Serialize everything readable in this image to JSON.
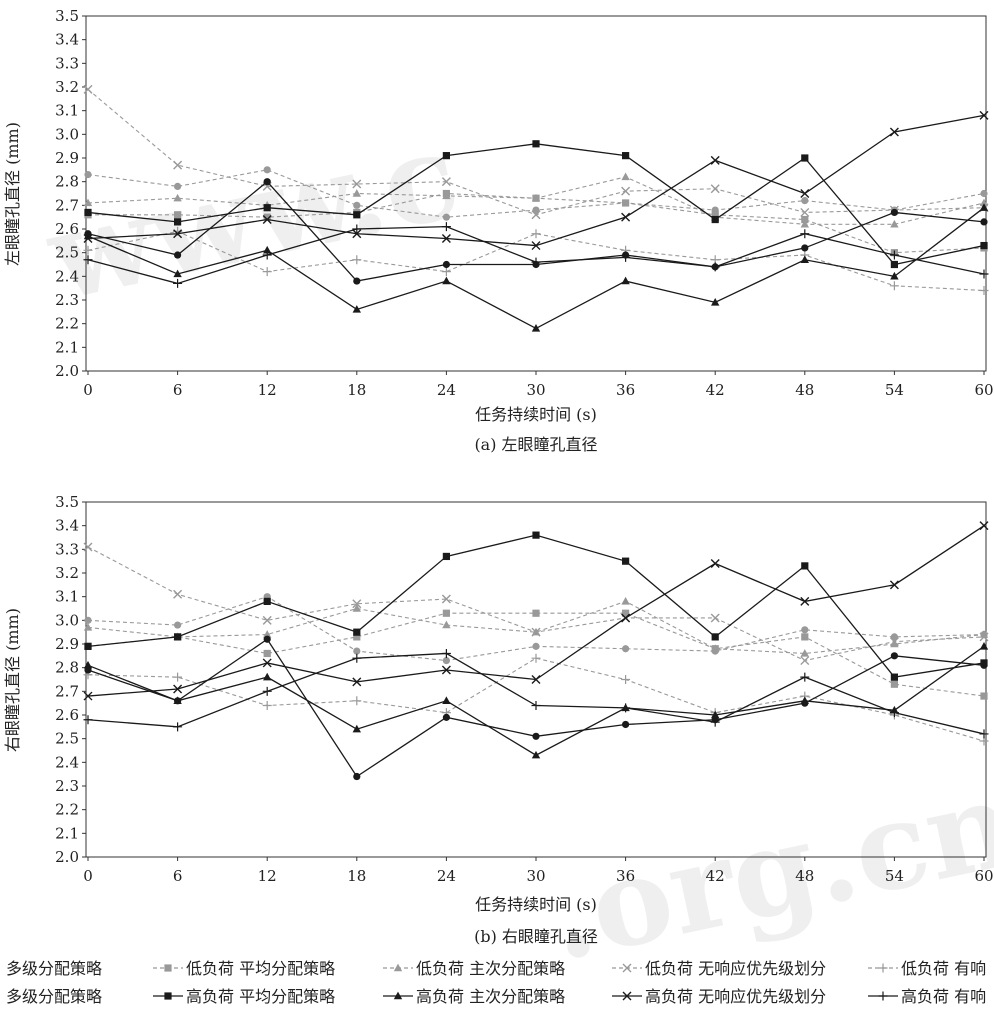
{
  "figure": {
    "subplots": [
      {
        "caption": "(a) 左眼瞳孔直径",
        "xlabel": "任务持续时间 (s)",
        "ylabel": "左眼瞳孔直径 (mm)"
      },
      {
        "caption": "(b) 右眼瞳孔直径",
        "xlabel": "任务持续时间 (s)",
        "ylabel": "右眼瞳孔直径 (mm)"
      }
    ],
    "legend_rows": [
      [
        {
          "text": "多级分配策略",
          "style": "none"
        },
        {
          "text": "低负荷 平均分配策略",
          "style": "low-square"
        },
        {
          "text": "低负荷 主次分配策略",
          "style": "low-triangle"
        },
        {
          "text": "低负荷 无响应优先级划分",
          "style": "low-cross"
        },
        {
          "text": "低负荷 有响",
          "style": "low-plus"
        }
      ],
      [
        {
          "text": "多级分配策略",
          "style": "none"
        },
        {
          "text": "高负荷 平均分配策略",
          "style": "high-square"
        },
        {
          "text": "高负荷 主次分配策略",
          "style": "high-triangle"
        },
        {
          "text": "高负荷 无响应优先级划分",
          "style": "high-cross"
        },
        {
          "text": "高负荷 有响",
          "style": "high-plus"
        }
      ]
    ],
    "watermark": [
      "www.c",
      ".org.cn"
    ]
  },
  "chart_data": [
    {
      "type": "line",
      "caption": "(a) 左眼瞳孔直径",
      "xlabel": "任务持续时间 (s)",
      "ylabel": "左眼瞳孔直径 (mm)",
      "x": [
        0,
        6,
        12,
        18,
        24,
        30,
        36,
        42,
        48,
        54,
        60
      ],
      "ylim": [
        2.0,
        3.5
      ],
      "yticks": [
        2.0,
        2.1,
        2.2,
        2.3,
        2.4,
        2.5,
        2.6,
        2.7,
        2.8,
        2.9,
        3.0,
        3.1,
        3.2,
        3.3,
        3.4,
        3.5
      ],
      "ytick_labels": [
        "2.0",
        "2.1",
        "2.2",
        "2.3",
        "2.4",
        "2.5",
        "2.6",
        "2.7",
        "2.8",
        "2.9",
        "3.0",
        "3.1",
        "3.2",
        "3.3",
        "3.4",
        "3.5"
      ],
      "xtick_labels": [
        "0",
        "6",
        "12",
        "18",
        "24",
        "30",
        "36",
        "42",
        "48",
        "54",
        "60"
      ],
      "grid": false,
      "series": [
        {
          "name": "低负荷 多级分配策略",
          "marker": "circle",
          "dashed": true,
          "color": "#999999",
          "values": [
            2.83,
            2.78,
            2.85,
            2.7,
            2.65,
            2.68,
            2.71,
            2.68,
            2.72,
            2.68,
            2.75
          ]
        },
        {
          "name": "低负荷 平均分配策略",
          "marker": "square",
          "dashed": true,
          "color": "#999999",
          "values": [
            2.66,
            2.66,
            2.65,
            2.67,
            2.75,
            2.73,
            2.71,
            2.66,
            2.64,
            2.5,
            2.52
          ]
        },
        {
          "name": "低负荷 主次分配策略",
          "marker": "triangle",
          "dashed": true,
          "color": "#999999",
          "values": [
            2.71,
            2.73,
            2.7,
            2.75,
            2.74,
            2.73,
            2.82,
            2.65,
            2.62,
            2.62,
            2.71
          ]
        },
        {
          "name": "低负荷 无响应优先级划分",
          "marker": "cross",
          "dashed": true,
          "color": "#999999",
          "values": [
            3.19,
            2.87,
            2.78,
            2.79,
            2.8,
            2.66,
            2.76,
            2.77,
            2.67,
            2.68,
            2.69
          ]
        },
        {
          "name": "低负荷 有响",
          "marker": "plus",
          "dashed": true,
          "color": "#999999",
          "values": [
            2.51,
            2.59,
            2.42,
            2.47,
            2.42,
            2.58,
            2.51,
            2.47,
            2.49,
            2.36,
            2.34
          ]
        },
        {
          "name": "高负荷 多级分配策略",
          "marker": "circle",
          "dashed": false,
          "color": "#1a1a1a",
          "values": [
            2.58,
            2.49,
            2.8,
            2.38,
            2.45,
            2.45,
            2.49,
            2.44,
            2.52,
            2.67,
            2.63
          ]
        },
        {
          "name": "高负荷 平均分配策略",
          "marker": "square",
          "dashed": false,
          "color": "#1a1a1a",
          "values": [
            2.67,
            2.63,
            2.69,
            2.66,
            2.91,
            2.96,
            2.91,
            2.64,
            2.9,
            2.45,
            2.53
          ]
        },
        {
          "name": "高负荷 主次分配策略",
          "marker": "triangle",
          "dashed": false,
          "color": "#1a1a1a",
          "values": [
            2.57,
            2.41,
            2.51,
            2.26,
            2.38,
            2.18,
            2.38,
            2.29,
            2.47,
            2.4,
            2.69
          ]
        },
        {
          "name": "高负荷 无响应优先级划分",
          "marker": "cross",
          "dashed": false,
          "color": "#1a1a1a",
          "values": [
            2.56,
            2.58,
            2.64,
            2.58,
            2.56,
            2.53,
            2.65,
            2.89,
            2.75,
            3.01,
            3.08
          ]
        },
        {
          "name": "高负荷 有响",
          "marker": "plus",
          "dashed": false,
          "color": "#1a1a1a",
          "values": [
            2.47,
            2.37,
            2.49,
            2.6,
            2.61,
            2.46,
            2.48,
            2.44,
            2.58,
            2.49,
            2.41
          ]
        }
      ]
    },
    {
      "type": "line",
      "caption": "(b) 右眼瞳孔直径",
      "xlabel": "任务持续时间 (s)",
      "ylabel": "右眼瞳孔直径 (mm)",
      "x": [
        0,
        6,
        12,
        18,
        24,
        30,
        36,
        42,
        48,
        54,
        60
      ],
      "ylim": [
        2.0,
        3.5
      ],
      "yticks": [
        2.0,
        2.1,
        2.2,
        2.3,
        2.4,
        2.5,
        2.6,
        2.7,
        2.8,
        2.9,
        3.0,
        3.1,
        3.2,
        3.3,
        3.4,
        3.5
      ],
      "ytick_labels": [
        "2.0",
        "2.1",
        "2.2",
        "2.3",
        "2.4",
        "2.5",
        "2.6",
        "2.7",
        "2.8",
        "2.9",
        "3.0",
        "3.1",
        "3.2",
        "3.3",
        "3.4",
        "3.5"
      ],
      "xtick_labels": [
        "0",
        "6",
        "12",
        "18",
        "24",
        "30",
        "36",
        "42",
        "48",
        "54",
        "60"
      ],
      "grid": false,
      "series": [
        {
          "name": "低负荷 多级分配策略",
          "marker": "circle",
          "dashed": true,
          "color": "#999999",
          "values": [
            3.0,
            2.98,
            3.1,
            2.87,
            2.83,
            2.89,
            2.88,
            2.87,
            2.96,
            2.93,
            2.94
          ]
        },
        {
          "name": "低负荷 平均分配策略",
          "marker": "square",
          "dashed": true,
          "color": "#999999",
          "values": [
            2.89,
            2.93,
            2.86,
            2.93,
            3.03,
            3.03,
            3.03,
            2.88,
            2.93,
            2.73,
            2.68
          ]
        },
        {
          "name": "低负荷 主次分配策略",
          "marker": "triangle",
          "dashed": true,
          "color": "#999999",
          "values": [
            2.97,
            2.93,
            2.94,
            3.05,
            2.98,
            2.95,
            3.08,
            2.88,
            2.86,
            2.9,
            2.94
          ]
        },
        {
          "name": "低负荷 无响应优先级划分",
          "marker": "cross",
          "dashed": true,
          "color": "#999999",
          "values": [
            3.31,
            3.11,
            3.0,
            3.07,
            3.09,
            2.95,
            3.01,
            3.01,
            2.83,
            2.91,
            2.93
          ]
        },
        {
          "name": "低负荷 有响",
          "marker": "plus",
          "dashed": true,
          "color": "#999999",
          "values": [
            2.77,
            2.76,
            2.64,
            2.66,
            2.61,
            2.84,
            2.75,
            2.61,
            2.68,
            2.6,
            2.49
          ]
        },
        {
          "name": "高负荷 多级分配策略",
          "marker": "circle",
          "dashed": false,
          "color": "#1a1a1a",
          "values": [
            2.79,
            2.66,
            2.92,
            2.34,
            2.59,
            2.51,
            2.56,
            2.58,
            2.65,
            2.85,
            2.81
          ]
        },
        {
          "name": "高负荷 平均分配策略",
          "marker": "square",
          "dashed": false,
          "color": "#1a1a1a",
          "values": [
            2.89,
            2.93,
            3.08,
            2.95,
            3.27,
            3.36,
            3.25,
            2.93,
            3.23,
            2.76,
            2.82
          ]
        },
        {
          "name": "高负荷 主次分配策略",
          "marker": "triangle",
          "dashed": false,
          "color": "#1a1a1a",
          "values": [
            2.81,
            2.66,
            2.76,
            2.54,
            2.66,
            2.43,
            2.63,
            2.6,
            2.66,
            2.62,
            2.89
          ]
        },
        {
          "name": "高负荷 无响应优先级划分",
          "marker": "cross",
          "dashed": false,
          "color": "#1a1a1a",
          "values": [
            2.68,
            2.71,
            2.82,
            2.74,
            2.79,
            2.75,
            3.01,
            3.24,
            3.08,
            3.15,
            3.4
          ]
        },
        {
          "name": "高负荷 有响",
          "marker": "plus",
          "dashed": false,
          "color": "#1a1a1a",
          "values": [
            2.58,
            2.55,
            2.7,
            2.84,
            2.86,
            2.64,
            2.63,
            2.57,
            2.76,
            2.61,
            2.52
          ]
        }
      ]
    }
  ]
}
